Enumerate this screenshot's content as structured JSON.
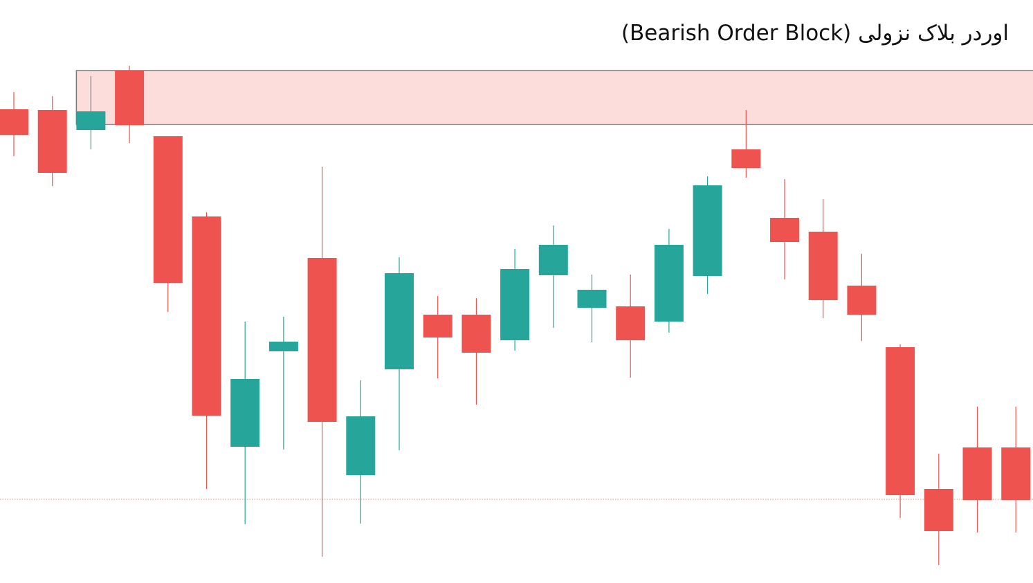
{
  "title": "اوردر بلاک نزولی (Bearish Order Block)",
  "colors": {
    "bullish": "#26A69A",
    "bearish": "#EF5350",
    "zone_fill": "#FDDCDC",
    "zone_border": "#7A7A7A",
    "reference_line": "#EF8A72"
  },
  "chart_data": {
    "type": "candlestick",
    "title": "اوردر بلاک نزولی (Bearish Order Block)",
    "xlabel": "",
    "ylabel": "",
    "axes_visible": false,
    "grid": false,
    "ylim": [
      0,
      843
    ],
    "candles": [
      {
        "open": 685,
        "high": 710,
        "low": 617,
        "close": 648,
        "direction": "bearish"
      },
      {
        "open": 684,
        "high": 704,
        "low": 574,
        "close": 593,
        "direction": "bearish"
      },
      {
        "open": 655,
        "high": 733,
        "low": 627,
        "close": 682,
        "direction": "bullish"
      },
      {
        "open": 741,
        "high": 748,
        "low": 636,
        "close": 662,
        "direction": "bearish"
      },
      {
        "open": 646,
        "high": 646,
        "low": 392,
        "close": 434,
        "direction": "bearish"
      },
      {
        "open": 530,
        "high": 536,
        "low": 136,
        "close": 242,
        "direction": "bearish"
      },
      {
        "open": 197,
        "high": 378,
        "low": 85,
        "close": 295,
        "direction": "bullish"
      },
      {
        "open": 335,
        "high": 385,
        "low": 193,
        "close": 349,
        "direction": "bullish"
      },
      {
        "open": 470,
        "high": 602,
        "low": 38,
        "close": 233,
        "direction": "bearish"
      },
      {
        "open": 156,
        "high": 293,
        "low": 86,
        "close": 241,
        "direction": "bullish"
      },
      {
        "open": 309,
        "high": 471,
        "low": 192,
        "close": 448,
        "direction": "bullish"
      },
      {
        "open": 388,
        "high": 415,
        "low": 296,
        "close": 355,
        "direction": "bearish"
      },
      {
        "open": 388,
        "high": 412,
        "low": 258,
        "close": 333,
        "direction": "bearish"
      },
      {
        "open": 351,
        "high": 483,
        "low": 336,
        "close": 454,
        "direction": "bullish"
      },
      {
        "open": 445,
        "high": 517,
        "low": 369,
        "close": 489,
        "direction": "bullish"
      },
      {
        "open": 398,
        "high": 446,
        "low": 348,
        "close": 424,
        "direction": "bullish"
      },
      {
        "open": 400,
        "high": 446,
        "low": 297,
        "close": 351,
        "direction": "bearish"
      },
      {
        "open": 378,
        "high": 512,
        "low": 362,
        "close": 489,
        "direction": "bullish"
      },
      {
        "open": 444,
        "high": 588,
        "low": 418,
        "close": 575,
        "direction": "bullish"
      },
      {
        "open": 627,
        "high": 684,
        "low": 586,
        "close": 600,
        "direction": "bearish"
      },
      {
        "open": 528,
        "high": 584,
        "low": 439,
        "close": 493,
        "direction": "bearish"
      },
      {
        "open": 508,
        "high": 555,
        "low": 383,
        "close": 409,
        "direction": "bearish"
      },
      {
        "open": 430,
        "high": 476,
        "low": 350,
        "close": 388,
        "direction": "bearish"
      },
      {
        "open": 341,
        "high": 345,
        "low": 94,
        "close": 127,
        "direction": "bearish"
      },
      {
        "open": 136,
        "high": 187,
        "low": 26,
        "close": 75,
        "direction": "bearish"
      },
      {
        "open": 196,
        "high": 255,
        "low": 73,
        "close": 120,
        "direction": "bearish"
      },
      {
        "open": 196,
        "high": 255,
        "low": 73,
        "close": 120,
        "direction": "bearish"
      }
    ],
    "order_block_zone": {
      "low": 663,
      "high": 741,
      "from_candle": 2,
      "label": ""
    },
    "reference_level": 121
  }
}
